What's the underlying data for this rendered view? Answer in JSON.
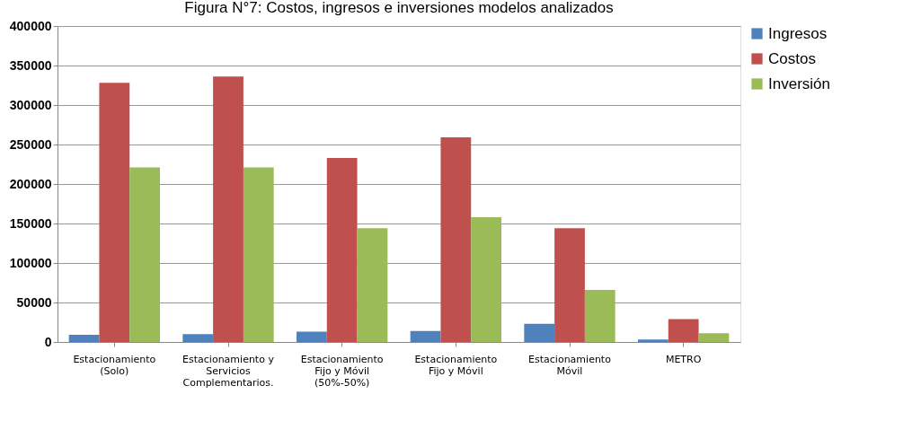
{
  "chart_data": {
    "type": "bar",
    "title": "Figura N°7: Costos, ingresos e inversiones modelos analizados",
    "categories": [
      "Estacionamiento (Solo)",
      "Estacionamiento y Servicios Complementarios.",
      "Estacionamiento Fijo y Móvil (50%-50%)",
      "Estacionamiento Fijo y Móvil",
      "Estacionamiento Móvil",
      "METRO"
    ],
    "series": [
      {
        "name": "Ingresos",
        "color": "#4f81bd",
        "values": [
          9000,
          10000,
          13000,
          14000,
          23000,
          3000
        ]
      },
      {
        "name": "Costos",
        "color": "#c0504d",
        "values": [
          328000,
          336000,
          233000,
          259000,
          144000,
          29000
        ]
      },
      {
        "name": "Inversión",
        "color": "#9bbb59",
        "values": [
          221000,
          221000,
          144000,
          158000,
          66000,
          11000
        ]
      }
    ],
    "ylim": [
      0,
      400000
    ],
    "yticks": [
      0,
      50000,
      100000,
      150000,
      200000,
      250000,
      300000,
      350000,
      400000
    ],
    "grid": "y",
    "legend": "right"
  }
}
